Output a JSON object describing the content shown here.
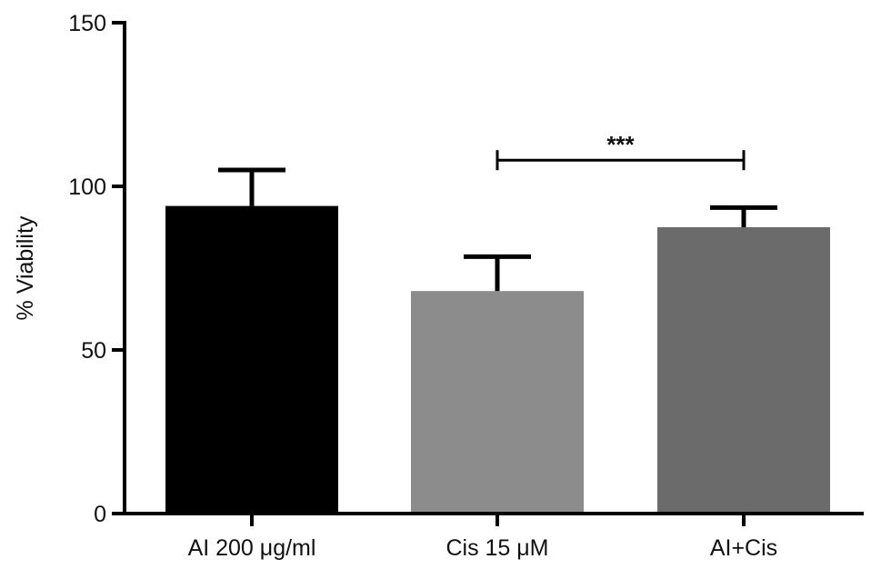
{
  "chart_data": {
    "type": "bar",
    "categories": [
      "AI 200 μg/ml",
      "Cis 15 μM",
      "AI+Cis"
    ],
    "values": [
      94,
      68,
      87.5
    ],
    "errors": [
      11,
      10.5,
      6
    ],
    "colors": [
      "#000000",
      "#8c8c8c",
      "#6b6b6b"
    ],
    "title": "",
    "xlabel": "",
    "ylabel": "% Viability",
    "ylim": [
      0,
      150
    ],
    "yticks": [
      0,
      50,
      100,
      150
    ],
    "grid": false,
    "significance": [
      {
        "from": 1,
        "to": 2,
        "y": 108,
        "label": "***"
      }
    ]
  }
}
